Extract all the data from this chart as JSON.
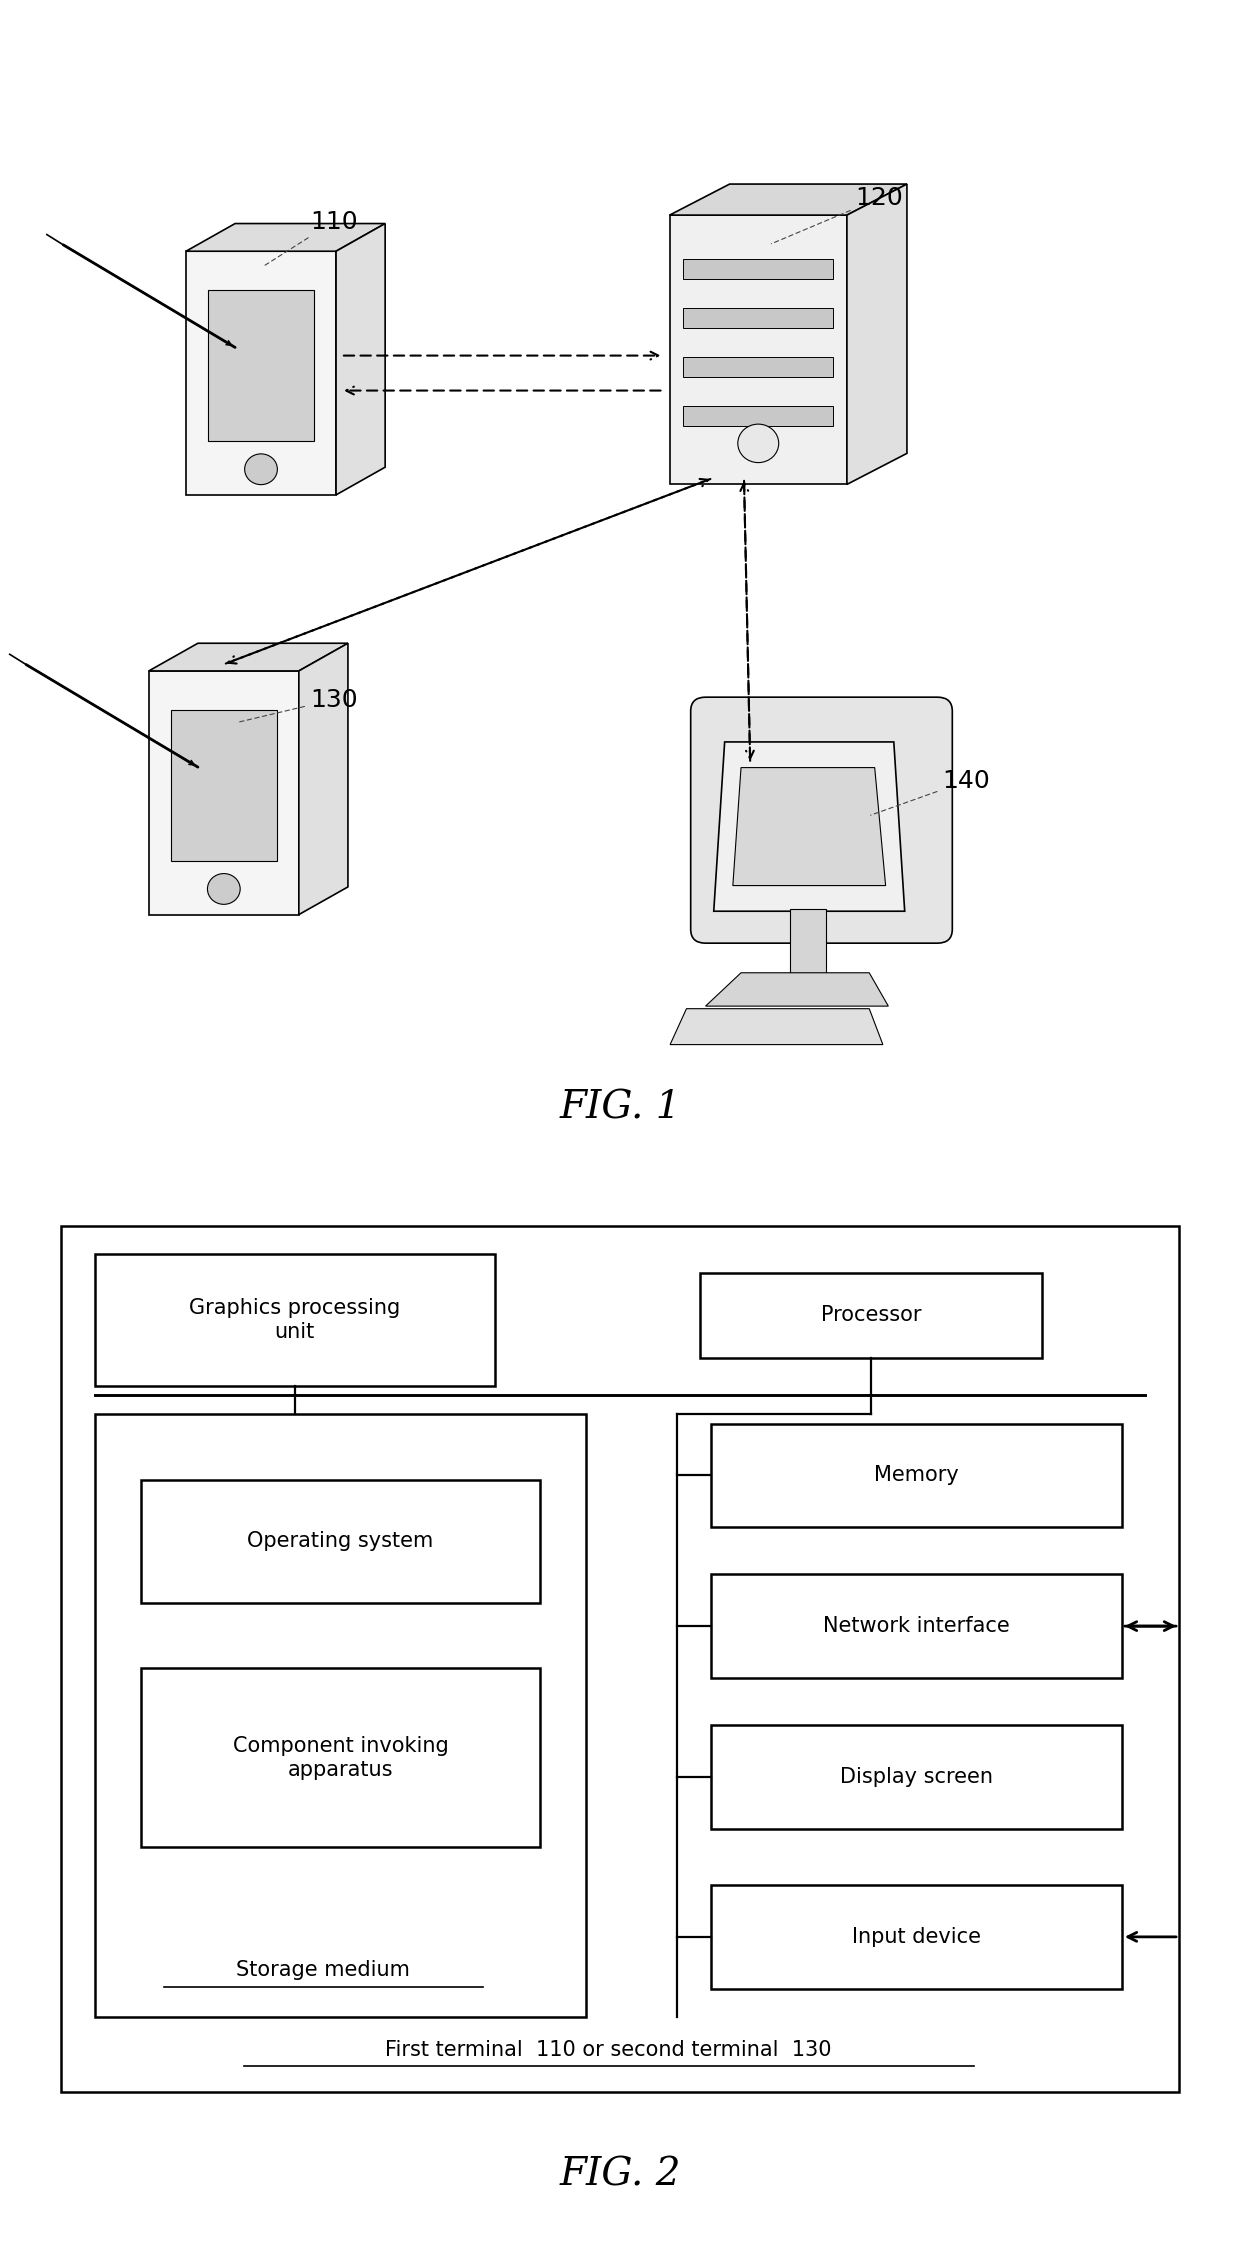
{
  "fig1_label": "FIG. 1",
  "fig2_label": "FIG. 2",
  "background_color": "#ffffff",
  "text_color": "#000000",
  "box_edge_color": "#000000",
  "line_color": "#000000",
  "gray_light": "#e8e8e8",
  "gray_mid": "#cccccc",
  "gray_dark": "#888888",
  "labels": {
    "110": "110",
    "120": "120",
    "130": "130",
    "140": "140"
  },
  "fig2_texts": {
    "gpu": "Graphics processing\nunit",
    "processor": "Processor",
    "storage": "Storage medium",
    "os": "Operating system",
    "component": "Component invoking\napparatus",
    "memory": "Memory",
    "network": "Network interface",
    "display": "Display screen",
    "input": "Input device",
    "outer": "First terminal  110 or second terminal  130"
  }
}
